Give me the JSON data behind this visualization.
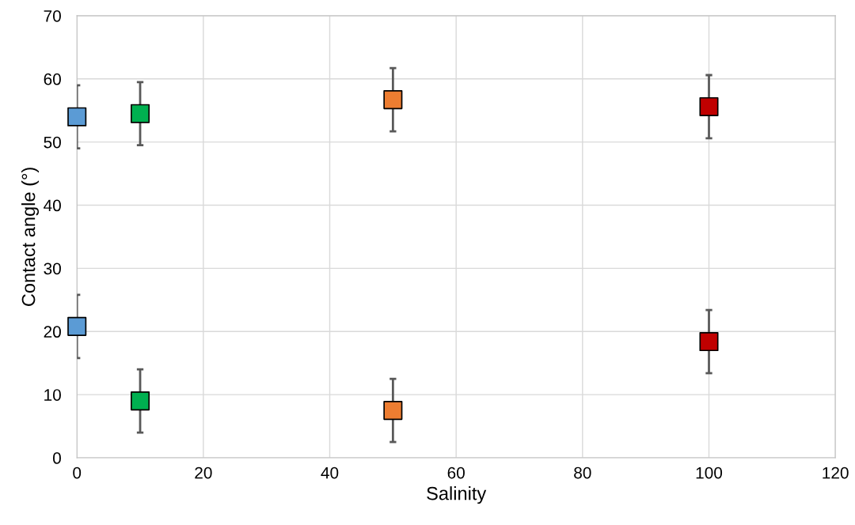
{
  "chart_data": {
    "type": "scatter",
    "xlabel": "Salinity",
    "ylabel": "Contact angle (°)",
    "xlim": [
      0,
      120
    ],
    "xticks": [
      0,
      20,
      40,
      60,
      80,
      100,
      120
    ],
    "ylim": [
      0,
      70
    ],
    "yticks": [
      0,
      10,
      20,
      30,
      40,
      50,
      60,
      70
    ],
    "grid": true,
    "marker": "square",
    "series": [
      {
        "color": "#5b9bd5",
        "x": [
          0,
          0
        ],
        "values": [
          54,
          20.8
        ],
        "errors": [
          5,
          5
        ]
      },
      {
        "color": "#00b050",
        "x": [
          10,
          10
        ],
        "values": [
          54.5,
          9
        ],
        "errors": [
          5,
          5
        ]
      },
      {
        "color": "#ed7d31",
        "x": [
          50,
          50
        ],
        "values": [
          56.7,
          7.5
        ],
        "errors": [
          5,
          5
        ]
      },
      {
        "color": "#c00000",
        "x": [
          100,
          100
        ],
        "values": [
          55.6,
          18.4
        ],
        "errors": [
          5,
          5
        ]
      }
    ]
  }
}
